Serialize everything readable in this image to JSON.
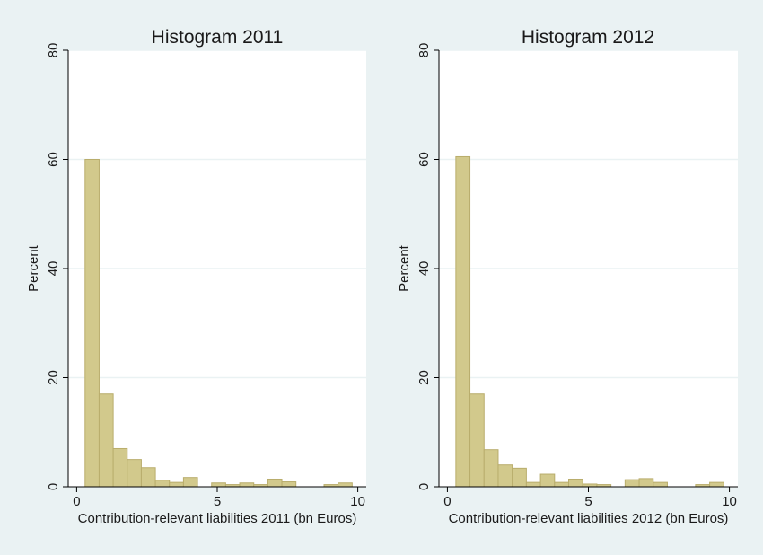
{
  "colors": {
    "background": "#eaf2f3",
    "plot_area": "#ffffff",
    "bar_fill": "#d2c98c",
    "bar_stroke": "#b9ad6c",
    "gridline": "#eaf2f3",
    "axis": "#000000"
  },
  "chart_data": [
    {
      "type": "bar",
      "title": "Histogram 2011",
      "xlabel": "Contribution-relevant liabilities 2011 (bn Euros)",
      "ylabel": "Percent",
      "xlim": [
        -0.3,
        10.3
      ],
      "ylim": [
        0,
        80
      ],
      "x_ticks": [
        0,
        5,
        10
      ],
      "y_ticks": [
        0,
        20,
        40,
        60,
        80
      ],
      "grid": true,
      "bin_width": 0.5,
      "bin_starts": [
        0.3,
        0.8,
        1.3,
        1.8,
        2.3,
        2.8,
        3.3,
        3.8,
        4.3,
        4.8,
        5.3,
        5.8,
        6.3,
        6.8,
        7.3,
        7.8,
        8.3,
        8.8,
        9.3
      ],
      "values": [
        60.0,
        17.0,
        7.0,
        5.0,
        3.5,
        1.2,
        0.8,
        1.7,
        0,
        0.7,
        0.4,
        0.7,
        0.4,
        1.4,
        0.9,
        0,
        0,
        0.4,
        0.7
      ]
    },
    {
      "type": "bar",
      "title": "Histogram 2012",
      "xlabel": "Contribution-relevant liabilities 2012 (bn Euros)",
      "ylabel": "Percent",
      "xlim": [
        -0.3,
        10.3
      ],
      "ylim": [
        0,
        80
      ],
      "x_ticks": [
        0,
        5,
        10
      ],
      "y_ticks": [
        0,
        20,
        40,
        60,
        80
      ],
      "grid": true,
      "bin_width": 0.5,
      "bin_starts": [
        0.3,
        0.8,
        1.3,
        1.8,
        2.3,
        2.8,
        3.3,
        3.8,
        4.3,
        4.8,
        5.3,
        5.8,
        6.3,
        6.8,
        7.3,
        7.8,
        8.3,
        8.8,
        9.3
      ],
      "values": [
        60.5,
        17.0,
        6.8,
        4.0,
        3.4,
        0.8,
        2.3,
        0.8,
        1.4,
        0.5,
        0.4,
        0,
        1.3,
        1.5,
        0.8,
        0,
        0,
        0.4,
        0.8
      ]
    }
  ]
}
